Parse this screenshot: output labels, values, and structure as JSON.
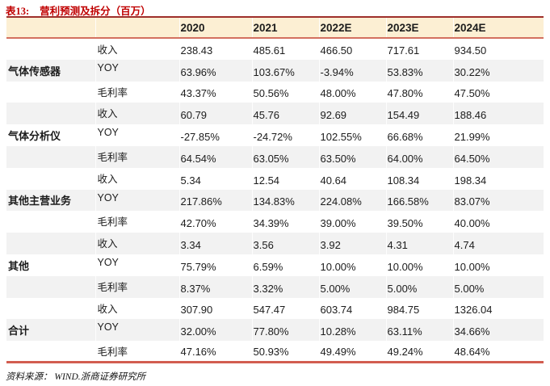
{
  "title": {
    "tag": "表13:",
    "text": "营利预测及拆分（百万）"
  },
  "table": {
    "column_headers": [
      "2020",
      "2021",
      "2022E",
      "2023E",
      "2024E"
    ],
    "groups": [
      {
        "label": "气体传感器",
        "rows": [
          {
            "metric": "收入",
            "values": [
              "238.43",
              "485.61",
              "466.50",
              "717.61",
              "934.50"
            ]
          },
          {
            "metric": "YOY",
            "values": [
              "63.96%",
              "103.67%",
              "-3.94%",
              "53.83%",
              "30.22%"
            ]
          },
          {
            "metric": "毛利率",
            "values": [
              "43.37%",
              "50.56%",
              "48.00%",
              "47.80%",
              "47.50%"
            ]
          }
        ]
      },
      {
        "label": "气体分析仪",
        "rows": [
          {
            "metric": "收入",
            "values": [
              "60.79",
              "45.76",
              "92.69",
              "154.49",
              "188.46"
            ]
          },
          {
            "metric": "YOY",
            "values": [
              "-27.85%",
              "-24.72%",
              "102.55%",
              "66.68%",
              "21.99%"
            ]
          },
          {
            "metric": "毛利率",
            "values": [
              "64.54%",
              "63.05%",
              "63.50%",
              "64.00%",
              "64.50%"
            ]
          }
        ]
      },
      {
        "label": "其他主营业务",
        "rows": [
          {
            "metric": "收入",
            "values": [
              "5.34",
              "12.54",
              "40.64",
              "108.34",
              "198.34"
            ]
          },
          {
            "metric": "YOY",
            "values": [
              "217.86%",
              "134.83%",
              "224.08%",
              "166.58%",
              "83.07%"
            ]
          },
          {
            "metric": "毛利率",
            "values": [
              "42.70%",
              "34.39%",
              "39.00%",
              "39.50%",
              "40.00%"
            ]
          }
        ]
      },
      {
        "label": "其他",
        "rows": [
          {
            "metric": "收入",
            "values": [
              "3.34",
              "3.56",
              "3.92",
              "4.31",
              "4.74"
            ]
          },
          {
            "metric": "YOY",
            "values": [
              "75.79%",
              "6.59%",
              "10.00%",
              "10.00%",
              "10.00%"
            ]
          },
          {
            "metric": "毛利率",
            "values": [
              "8.37%",
              "3.32%",
              "5.00%",
              "5.00%",
              "5.00%"
            ]
          }
        ]
      },
      {
        "label": "合计",
        "rows": [
          {
            "metric": "收入",
            "values": [
              "307.90",
              "547.47",
              "603.74",
              "984.75",
              "1326.04"
            ]
          },
          {
            "metric": "YOY",
            "values": [
              "32.00%",
              "77.80%",
              "10.28%",
              "63.11%",
              "34.66%"
            ]
          },
          {
            "metric": "毛利率",
            "values": [
              "47.16%",
              "50.93%",
              "49.49%",
              "49.24%",
              "48.64%"
            ]
          }
        ]
      }
    ]
  },
  "footer": {
    "source": "资料来源： WIND.浙商证券研究所"
  },
  "colors": {
    "title_red": "#c00000",
    "header_bg": "#fcefd3",
    "top_rule": "#9e2f2b",
    "header_rule": "#d3705f",
    "bottom_rule": "#d25d50",
    "row_stripe": "#f2f2f2",
    "text": "#1c1c1c"
  }
}
